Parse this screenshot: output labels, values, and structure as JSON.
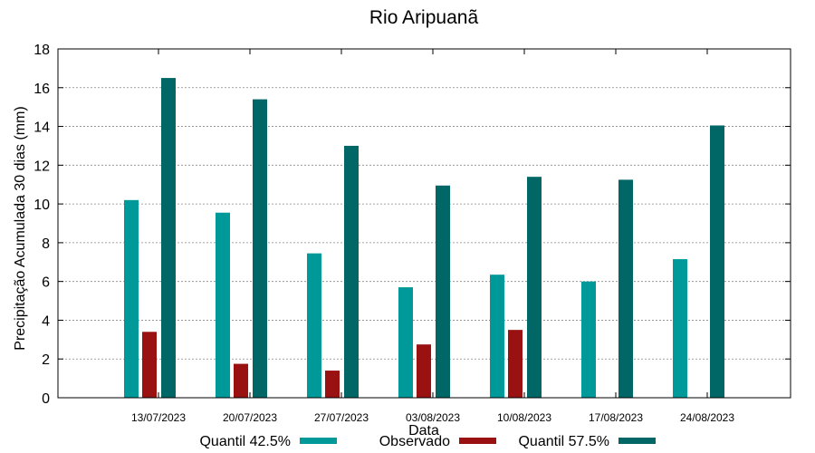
{
  "chart_data": {
    "type": "bar",
    "title": "Rio Aripuanã",
    "xlabel": "Data",
    "ylabel": "Precipitação Acumulada 30 dias (mm)",
    "ylim": [
      0,
      18
    ],
    "yticks": [
      0,
      2,
      4,
      6,
      8,
      10,
      12,
      14,
      16,
      18
    ],
    "grid": true,
    "legend_position": "bottom",
    "categories": [
      "13/07/2023",
      "20/07/2023",
      "27/07/2023",
      "03/08/2023",
      "10/08/2023",
      "17/08/2023",
      "24/08/2023"
    ],
    "series": [
      {
        "name": "Quantil 42.5%",
        "color": "#009999",
        "values": [
          10.2,
          9.55,
          7.45,
          5.7,
          6.35,
          6.0,
          7.15
        ]
      },
      {
        "name": "Observado",
        "color": "#991111",
        "values": [
          3.4,
          1.75,
          1.4,
          2.75,
          3.5,
          null,
          null
        ]
      },
      {
        "name": "Quantil 57.5%",
        "color": "#006666",
        "values": [
          16.5,
          15.4,
          13.0,
          10.95,
          11.4,
          11.25,
          14.05
        ]
      }
    ]
  }
}
